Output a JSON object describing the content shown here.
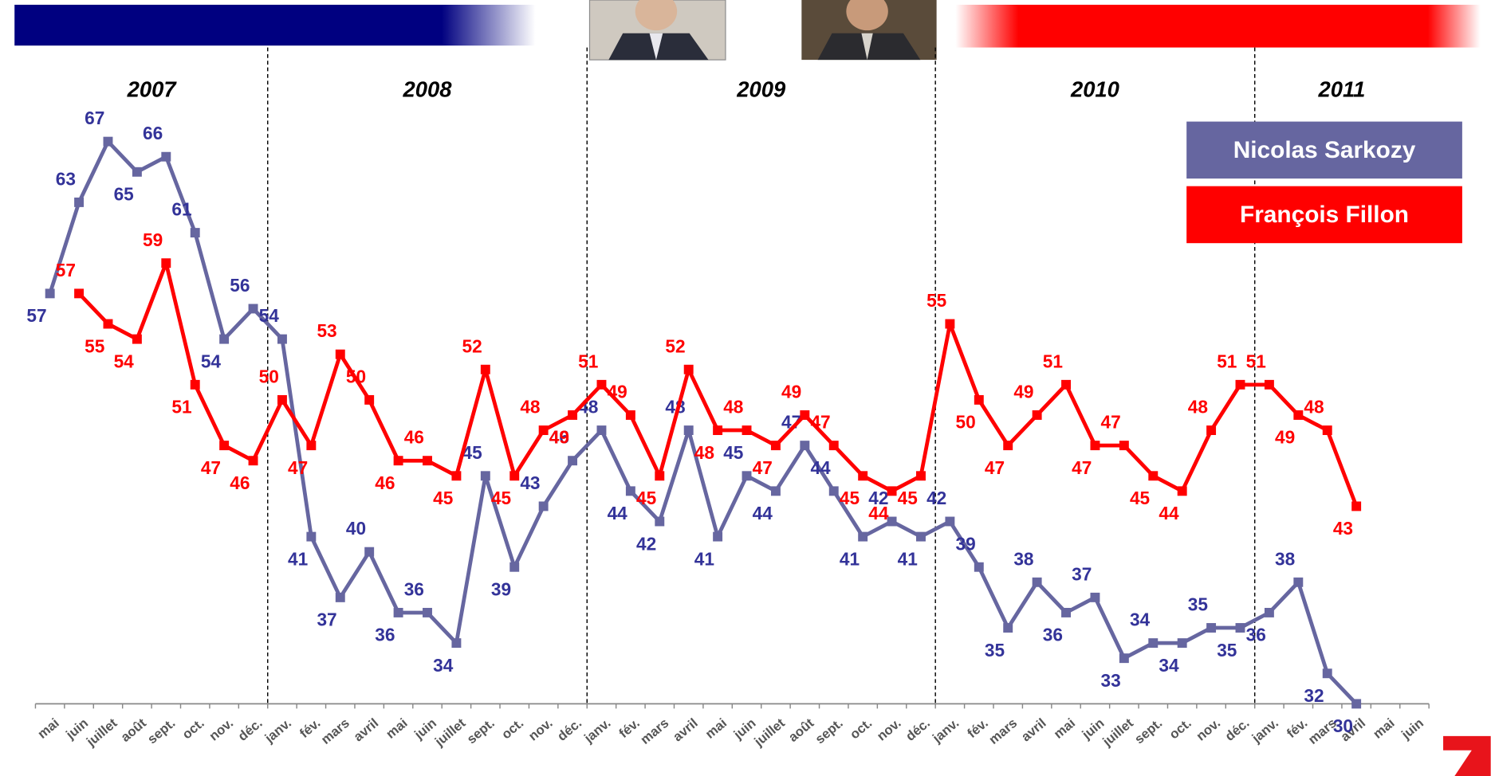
{
  "chart_data": {
    "type": "line",
    "category_groups": [
      {
        "label": "2007",
        "categories": [
          "mai",
          "juin",
          "juillet",
          "août",
          "sept.",
          "oct.",
          "nov.",
          "déc."
        ]
      },
      {
        "label": "2008",
        "categories": [
          "janv.",
          "fév.",
          "mars",
          "avril",
          "mai",
          "juin",
          "juillet",
          "sept.",
          "oct.",
          "nov.",
          "déc."
        ]
      },
      {
        "label": "2009",
        "categories": [
          "janv.",
          "fév.",
          "mars",
          "avril",
          "mai",
          "juin",
          "juillet",
          "août",
          "sept.",
          "oct.",
          "nov.",
          "déc."
        ]
      },
      {
        "label": "2010",
        "categories": [
          "janv.",
          "fév.",
          "mars",
          "avril",
          "mai",
          "juin",
          "juillet",
          "sept.",
          "oct.",
          "nov.",
          "déc."
        ]
      },
      {
        "label": "2011",
        "categories": [
          "janv.",
          "fév.",
          "mars",
          "avril",
          "mai",
          "juin"
        ]
      }
    ],
    "series": [
      {
        "name": "Nicolas Sarkozy",
        "color": "#6666a0",
        "label_color": "#333399",
        "values": [
          57,
          63,
          67,
          65,
          66,
          61,
          54,
          56,
          54,
          41,
          37,
          40,
          36,
          36,
          34,
          45,
          39,
          43,
          46,
          48,
          44,
          42,
          48,
          41,
          45,
          44,
          47,
          44,
          41,
          42,
          41,
          42,
          39,
          35,
          38,
          36,
          37,
          33,
          34,
          34,
          35,
          35,
          36,
          38,
          32,
          30,
          null,
          null
        ]
      },
      {
        "name": "François Fillon",
        "color": "#ff0000",
        "label_color": "#ff0000",
        "values": [
          null,
          57,
          55,
          54,
          59,
          51,
          47,
          46,
          50,
          47,
          53,
          50,
          46,
          46,
          45,
          52,
          45,
          48,
          49,
          51,
          49,
          45,
          52,
          48,
          48,
          47,
          49,
          47,
          45,
          44,
          45,
          55,
          50,
          47,
          49,
          51,
          47,
          47,
          45,
          44,
          48,
          51,
          51,
          49,
          48,
          43,
          null,
          null
        ]
      }
    ]
  }
}
